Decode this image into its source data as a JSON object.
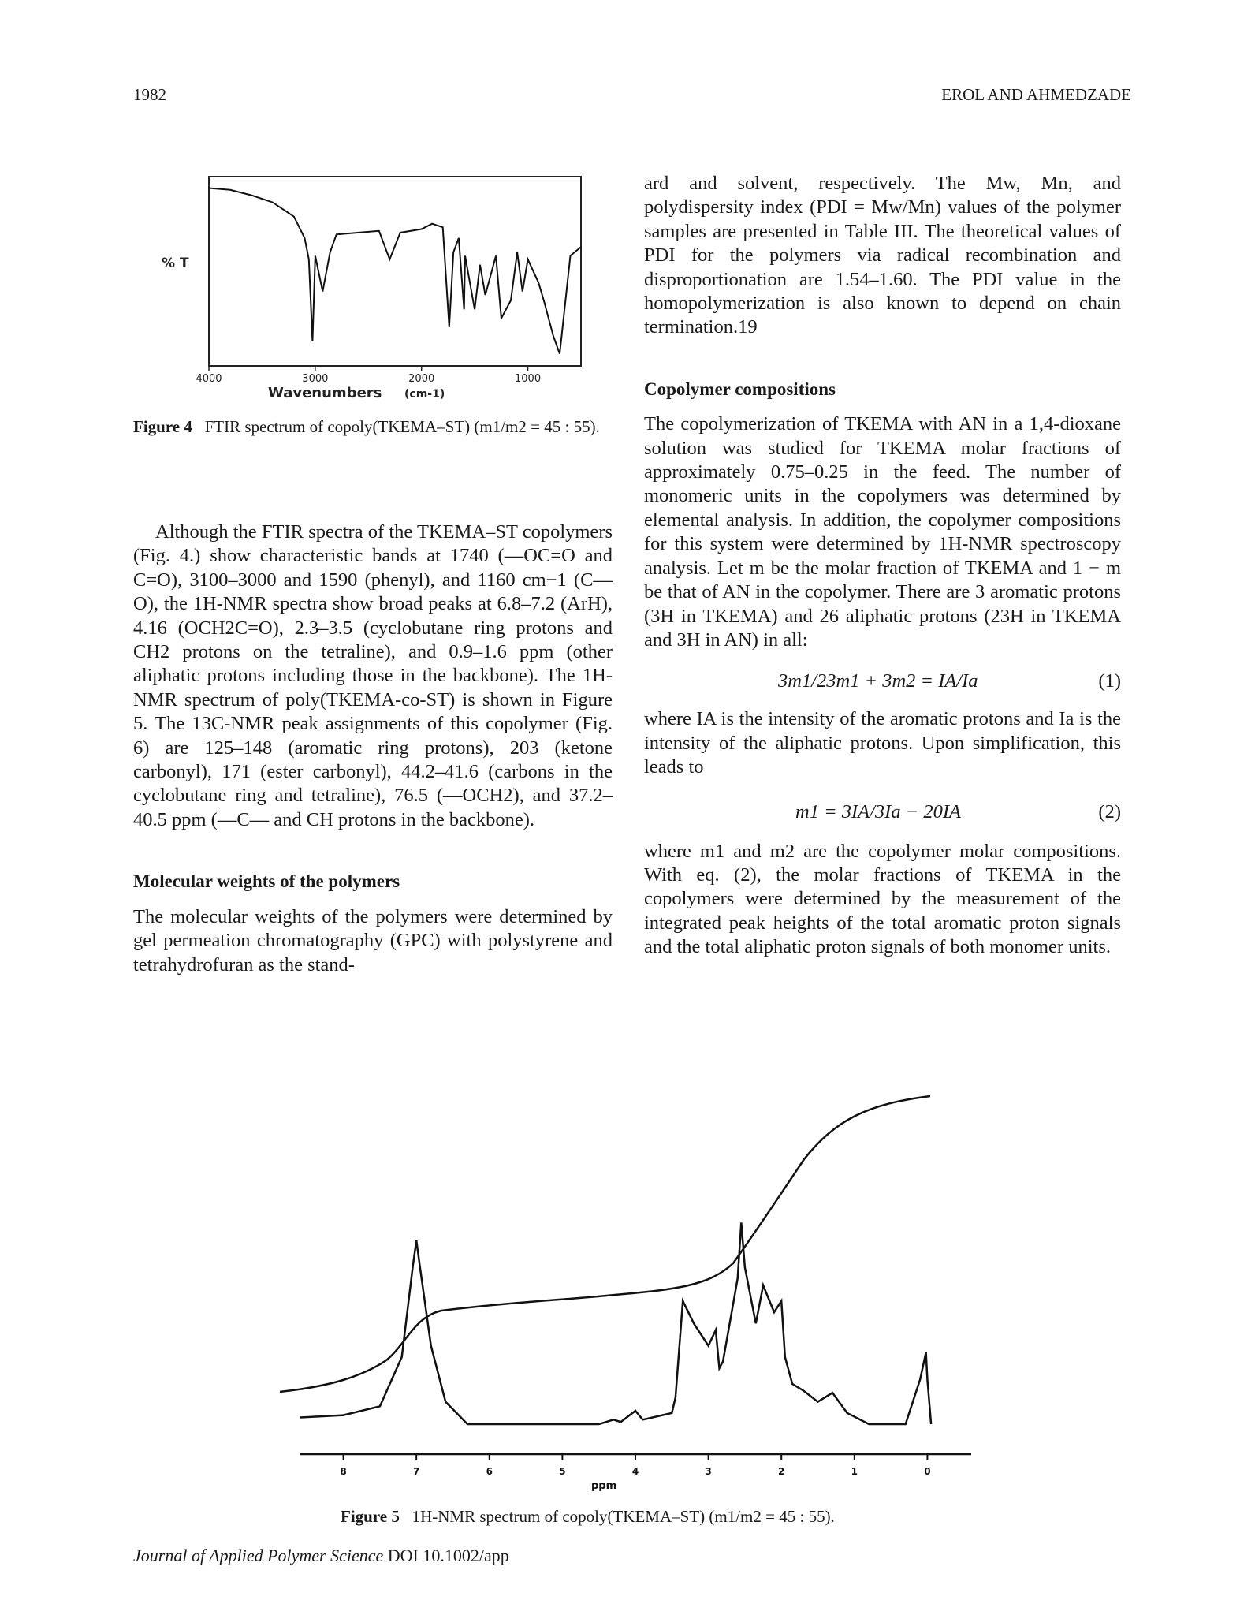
{
  "header": {
    "page_number": "1982",
    "running_title": "EROL AND AHMEDZADE"
  },
  "figure4": {
    "ylabel": "% T",
    "xlabel": "Wavenumbers",
    "xunit": "(cm-1)",
    "caption_label": "Figure 4",
    "caption_text": "FTIR spectrum of copoly(TKEMA–ST) (m1/m2 = 45 : 55).",
    "chart_data": {
      "type": "line",
      "xlabel": "Wavenumbers (cm-1)",
      "ylabel": "% T",
      "x_ticks": [
        "4000",
        "3000",
        "2000",
        "1000"
      ],
      "xlim": [
        4000,
        500
      ],
      "series": [
        {
          "x": [
            4000,
            3800,
            3600,
            3400,
            3200,
            3100,
            3060,
            3026,
            3000,
            2930,
            2860,
            2800,
            2600,
            2400,
            2300,
            2200,
            2000,
            1900,
            1800,
            1740,
            1700,
            1650,
            1600,
            1590,
            1500,
            1450,
            1400,
            1300,
            1250,
            1160,
            1100,
            1050,
            1000,
            900,
            850,
            760,
            700,
            600,
            500
          ],
          "y": [
            98,
            97,
            94,
            90,
            82,
            70,
            58,
            12,
            60,
            40,
            62,
            72,
            73,
            74,
            58,
            73,
            75,
            78,
            76,
            20,
            62,
            70,
            30,
            60,
            30,
            55,
            38,
            60,
            25,
            35,
            62,
            40,
            58,
            45,
            35,
            15,
            5,
            60,
            65
          ]
        }
      ]
    }
  },
  "left_col": {
    "para1": "Although the FTIR spectra of the TKEMA–ST copolymers (Fig. 4.) show characteristic bands at 1740 (—OC=O and C=O), 3100–3000 and 1590 (phenyl), and 1160 cm−1 (C—O), the 1H-NMR spectra show broad peaks at 6.8–7.2 (ArH), 4.16 (OCH2C=O), 2.3–3.5 (cyclobutane ring protons and CH2 protons on the tetraline), and 0.9–1.6 ppm (other aliphatic protons including those in the backbone). The 1H-NMR spectrum of poly(TKEMA-co-ST) is shown in Figure 5. The 13C-NMR peak assignments of this copolymer (Fig. 6) are 125–148 (aromatic ring protons), 203 (ketone carbonyl), 171 (ester carbonyl), 44.2–41.6 (carbons in the cyclobutane ring and tetraline), 76.5 (—OCH2), and 37.2–40.5 ppm (—C— and CH protons in the backbone).",
    "heading_mw": "Molecular weights of the polymers",
    "para2": "The molecular weights of the polymers were determined by gel permeation chromatography (GPC) with polystyrene and tetrahydrofuran as the stand-"
  },
  "right_col": {
    "para_cont": "ard and solvent, respectively. The Mw, Mn, and polydispersity index (PDI = Mw/Mn) values of the polymer samples are presented in Table III. The theoretical values of PDI for the polymers via radical recombination and disproportionation are 1.54–1.60. The PDI value in the homopolymerization is also known to depend on chain termination.19",
    "heading_cc": "Copolymer compositions",
    "para3": "The copolymerization of TKEMA with AN in a 1,4-dioxane solution was studied for TKEMA molar fractions of approximately 0.75–0.25 in the feed. The number of monomeric units in the copolymers was determined by elemental analysis. In addition, the copolymer compositions for this system were determined by 1H-NMR spectroscopy analysis. Let m be the molar fraction of TKEMA and 1 − m be that of AN in the copolymer. There are 3 aromatic protons (3H in TKEMA) and 26 aliphatic protons (23H in TKEMA and 3H in AN) in all:",
    "eq1": "3m1/23m1 + 3m2 = IA/Ia",
    "eq1_num": "(1)",
    "para4": "where IA is the intensity of the aromatic protons and Ia is the intensity of the aliphatic protons. Upon simplification, this leads to",
    "eq2": "m1 = 3IA/3Ia − 20IA",
    "eq2_num": "(2)",
    "para5": "where m1 and m2 are the copolymer molar compositions. With eq. (2), the molar fractions of TKEMA in the copolymers were determined by the measurement of the integrated peak heights of the total aromatic proton signals and the total aliphatic proton signals of both monomer units."
  },
  "figure5": {
    "xlabel": "ppm",
    "caption_label": "Figure 5",
    "caption_text": "1H-NMR spectrum of copoly(TKEMA–ST) (m1/m2 = 45 : 55).",
    "chart_data": {
      "type": "line",
      "xlabel": "ppm",
      "x_ticks": [
        "8",
        "7",
        "6",
        "5",
        "4",
        "3",
        "2",
        "1",
        "0"
      ],
      "xlim": [
        8.6,
        -0.6
      ],
      "series": [
        {
          "x": [
            8.6,
            8.0,
            7.5,
            7.2,
            7.05,
            7.0,
            6.95,
            6.8,
            6.6,
            6.3,
            6.0,
            5.5,
            5.0,
            4.5,
            4.3,
            4.2,
            4.0,
            3.9,
            3.5,
            3.45,
            3.35,
            3.2,
            3.0,
            2.9,
            2.85,
            2.8,
            2.6,
            2.55,
            2.5,
            2.35,
            2.25,
            2.1,
            2.0,
            1.95,
            1.85,
            1.7,
            1.5,
            1.3,
            1.1,
            0.8,
            0.6,
            0.3,
            0.1,
            0.02,
            0.0,
            -0.05
          ],
          "y": [
            3,
            4,
            8,
            30,
            70,
            82,
            70,
            35,
            10,
            0,
            0,
            0,
            0,
            0,
            2,
            1,
            6,
            2,
            5,
            12,
            55,
            45,
            35,
            42,
            25,
            28,
            65,
            90,
            70,
            45,
            62,
            50,
            55,
            30,
            18,
            15,
            10,
            14,
            5,
            0,
            0,
            0,
            20,
            32,
            20,
            0
          ]
        }
      ]
    }
  },
  "footer": {
    "journal": "Journal of Applied Polymer Science",
    "doi": "DOI 10.1002/app"
  }
}
